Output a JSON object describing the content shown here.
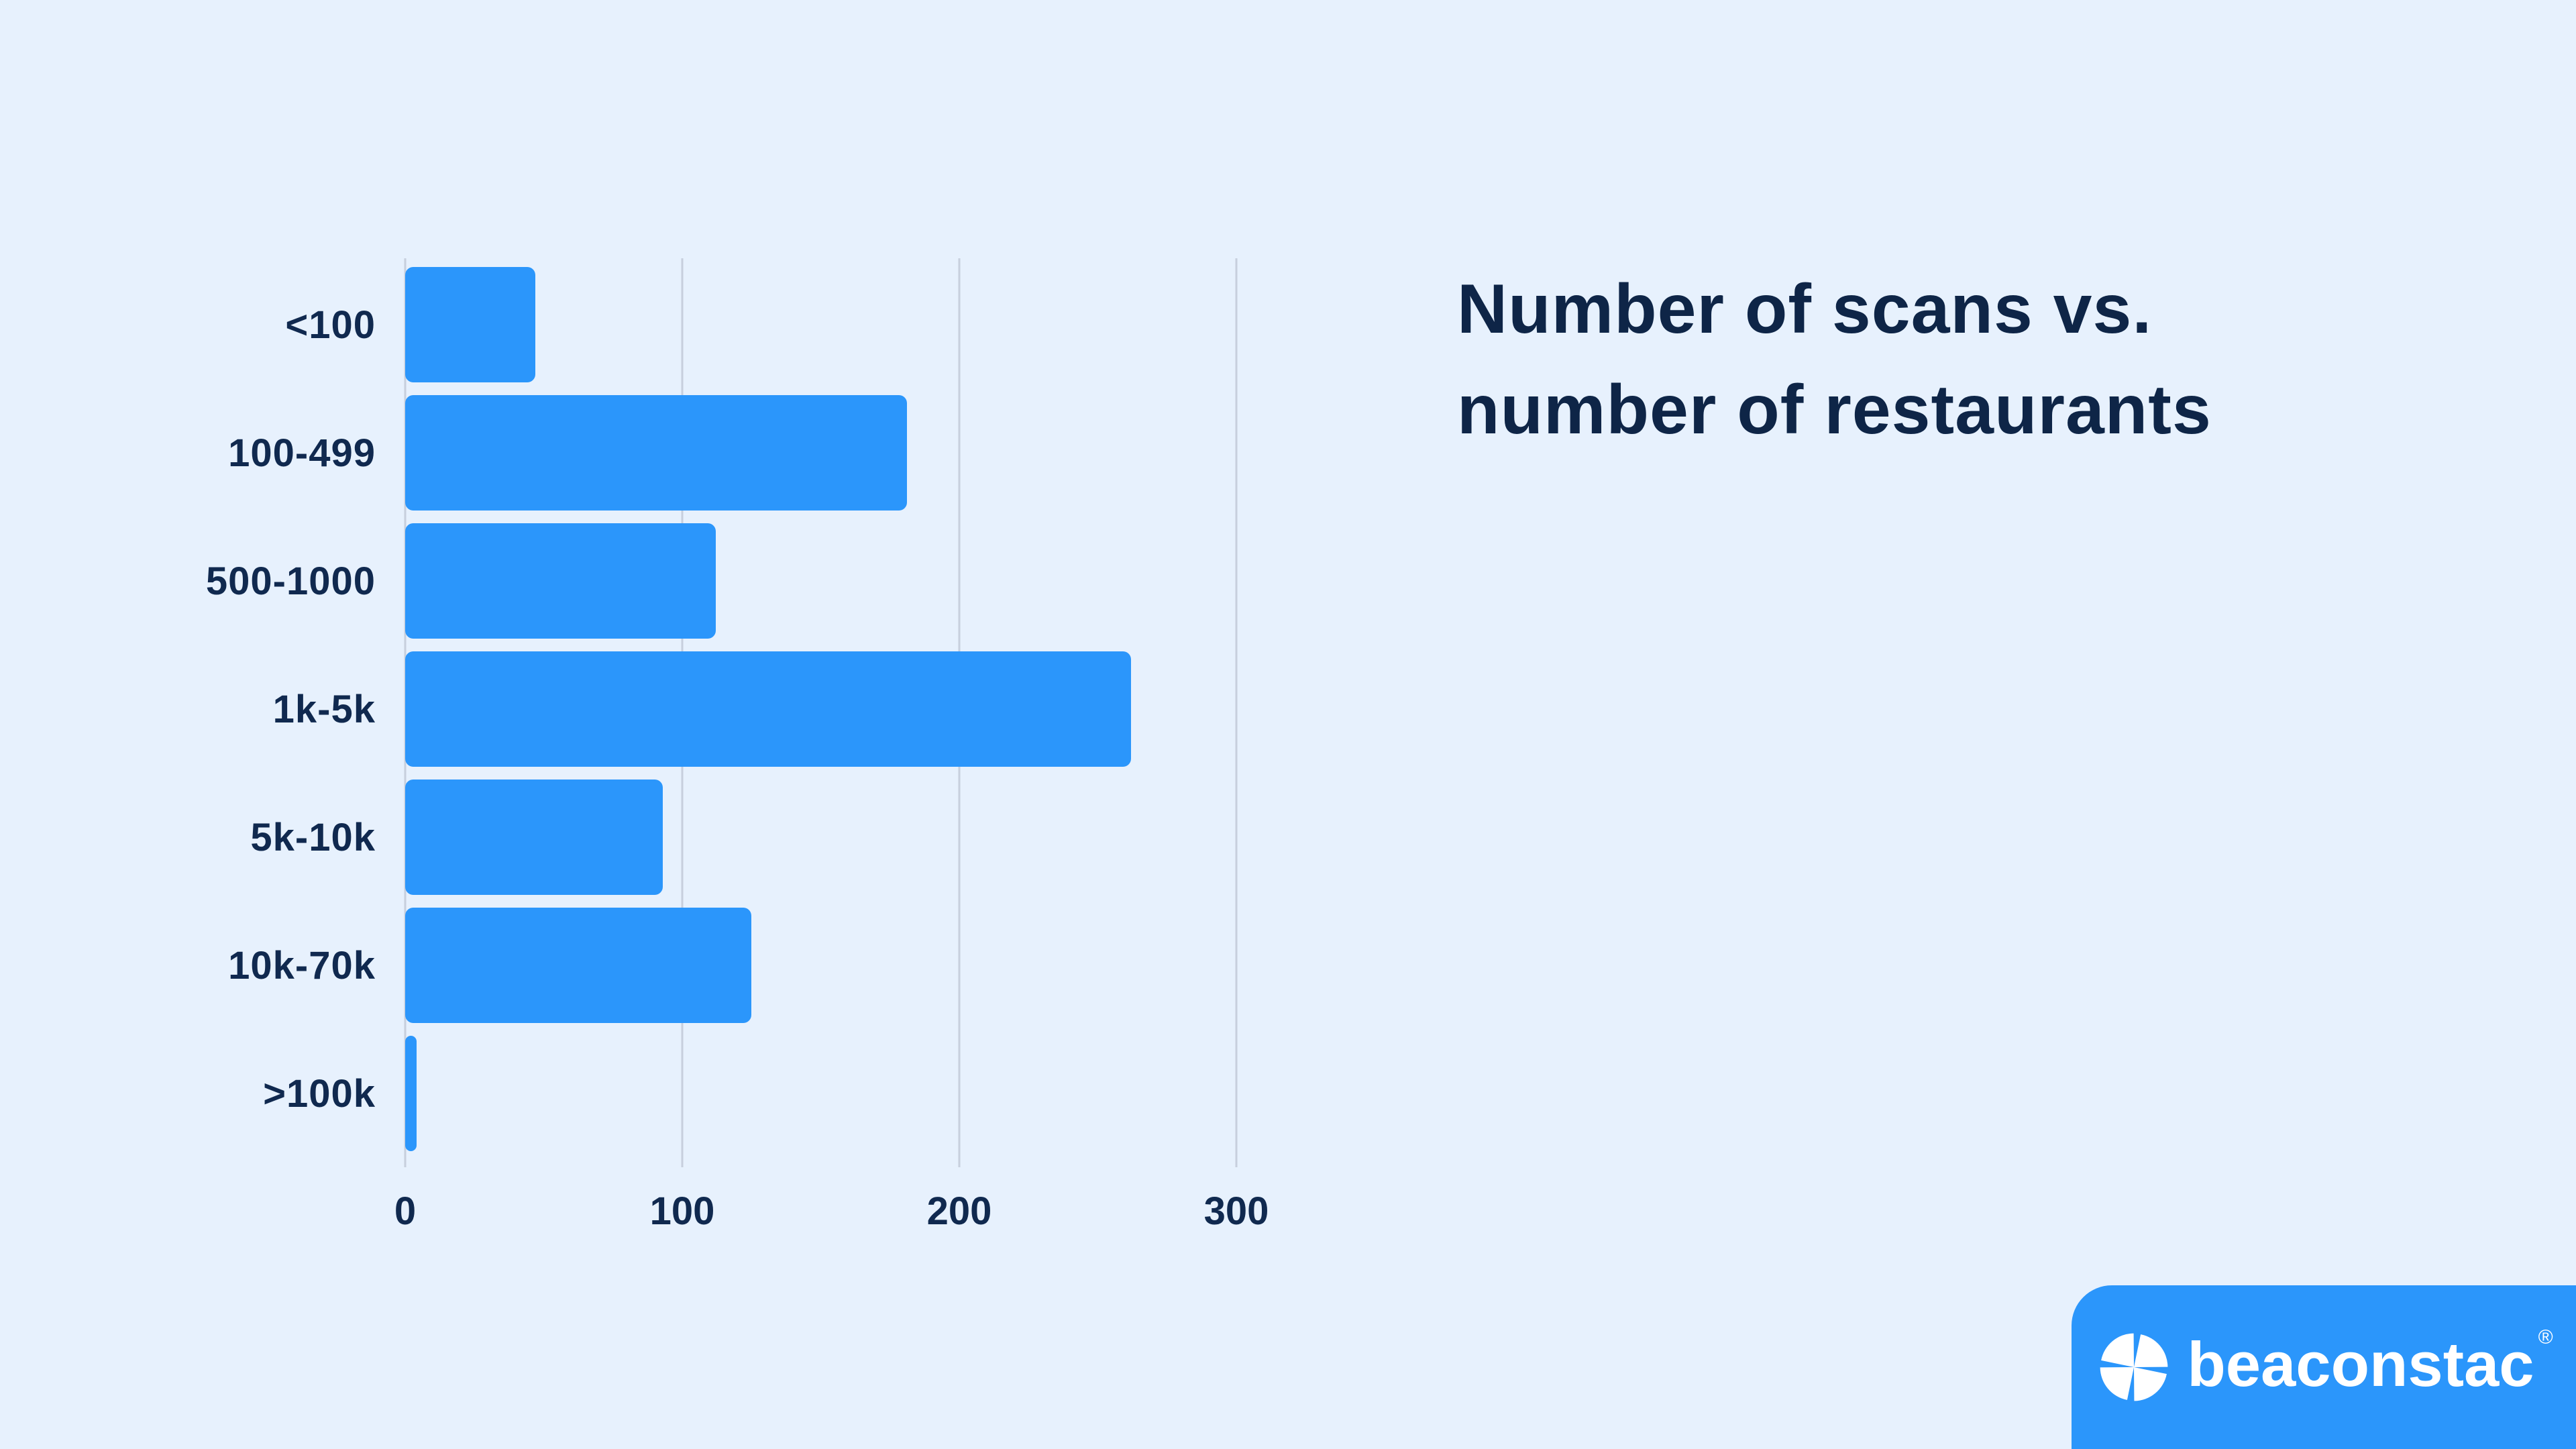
{
  "page": {
    "background": "#e7f1fd"
  },
  "title": {
    "line1": "Number of scans vs.",
    "line2": "number of restaurants",
    "color": "#0e2547"
  },
  "chart_data": {
    "type": "bar",
    "orientation": "horizontal",
    "title": "Number of scans vs. number of restaurants",
    "xlabel": "",
    "ylabel": "",
    "categories": [
      "<100",
      "100-499",
      "500-1000",
      "1k-5k",
      "5k-10k",
      "10k-70k",
      ">100k"
    ],
    "values": [
      47,
      181,
      112,
      262,
      93,
      125,
      4
    ],
    "x_ticks": [
      0,
      100,
      200,
      300
    ],
    "xlim": [
      0,
      333
    ],
    "grid": true,
    "legend": false,
    "bar_color": "#2b96fb",
    "gridline_color": "#c7cfdd",
    "label_color": "#10294f"
  },
  "logo": {
    "brand": "beaconstac",
    "registered": "®",
    "badge_color": "#2b96fb",
    "text_color": "#ffffff",
    "icon": "pinwheel-icon"
  }
}
